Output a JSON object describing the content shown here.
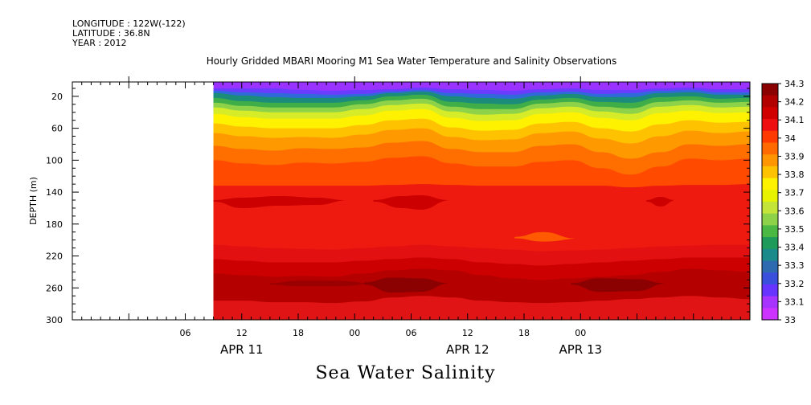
{
  "meta": {
    "longitude": "LONGITUDE : 122W(-122)",
    "latitude": "LATITUDE : 36.8N",
    "year": "YEAR : 2012"
  },
  "chart_data": {
    "type": "heatmap",
    "title": "Hourly Gridded MBARI Mooring M1 Sea Water Temperature and Salinity Observations",
    "bottom_title": "Sea Water Salinity",
    "ylabel": "DEPTH (m)",
    "y_reversed": true,
    "ylim": [
      300,
      2
    ],
    "y_ticks": [
      20,
      60,
      100,
      140,
      180,
      220,
      260,
      300
    ],
    "x_unit": "hours from APR 11 00:00",
    "xlim": [
      -6,
      66
    ],
    "x_ticks": [
      {
        "x": 6,
        "label": "06"
      },
      {
        "x": 12,
        "label": "12"
      },
      {
        "x": 18,
        "label": "18"
      },
      {
        "x": 24,
        "label": "00"
      },
      {
        "x": 30,
        "label": "06"
      },
      {
        "x": 36,
        "label": "12"
      },
      {
        "x": 42,
        "label": "18"
      },
      {
        "x": 48,
        "label": "00"
      }
    ],
    "date_labels": [
      {
        "x": 12,
        "label": "APR 11"
      },
      {
        "x": 36,
        "label": "APR 12"
      },
      {
        "x": 48,
        "label": "APR 13"
      }
    ],
    "data_start": 9,
    "colorbar": {
      "levels": [
        "34.3",
        "34.2",
        "34.1",
        "34",
        "33.9",
        "33.8",
        "33.7",
        "33.6",
        "33.5",
        "33.4",
        "33.3",
        "33.2",
        "33.1",
        "33"
      ],
      "colors": [
        "#8b0000",
        "#b20000",
        "#d00000",
        "#ee1010",
        "#ff3a00",
        "#ff6a00",
        "#ff9500",
        "#ffc200",
        "#fff200",
        "#e6f200",
        "#c4e43a",
        "#8ed24a",
        "#4ab843",
        "#1e9a5a",
        "#1a8a8a",
        "#2e6ab0",
        "#3a50dc",
        "#6633ff",
        "#a733ff",
        "#cc33ff"
      ]
    },
    "bands": [
      {
        "color": "#9a33ff",
        "top": [
          2,
          2,
          2,
          2,
          2,
          2,
          2,
          2,
          2,
          2,
          2,
          2,
          2,
          2,
          2,
          2,
          2,
          2,
          2
        ]
      },
      {
        "color": "#6a3cff",
        "top": [
          10,
          10,
          10,
          12,
          13,
          12,
          11,
          9,
          11,
          12,
          13,
          11,
          10,
          12,
          12,
          10,
          9,
          11,
          11
        ]
      },
      {
        "color": "#2f6ad8",
        "top": [
          13,
          15,
          16,
          17,
          18,
          17,
          14,
          12,
          16,
          17,
          18,
          15,
          14,
          17,
          16,
          13,
          12,
          15,
          15
        ]
      },
      {
        "color": "#1c8c7a",
        "top": [
          16,
          19,
          21,
          22,
          22,
          20,
          16,
          14,
          20,
          22,
          23,
          19,
          17,
          21,
          21,
          16,
          15,
          18,
          18
        ]
      },
      {
        "color": "#3fae48",
        "top": [
          22,
          26,
          28,
          28,
          28,
          25,
          20,
          18,
          27,
          29,
          30,
          24,
          22,
          27,
          28,
          21,
          20,
          23,
          22
        ]
      },
      {
        "color": "#8ed24a",
        "top": [
          28,
          32,
          34,
          34,
          34,
          30,
          25,
          23,
          33,
          36,
          36,
          29,
          27,
          33,
          35,
          27,
          25,
          28,
          27
        ]
      },
      {
        "color": "#d6ec28",
        "top": [
          34,
          38,
          40,
          40,
          40,
          36,
          31,
          29,
          39,
          43,
          42,
          35,
          33,
          39,
          42,
          33,
          31,
          34,
          33
        ]
      },
      {
        "color": "#fff200",
        "top": [
          42,
          46,
          48,
          48,
          48,
          44,
          38,
          36,
          47,
          51,
          50,
          42,
          40,
          47,
          50,
          41,
          38,
          41,
          40
        ]
      },
      {
        "color": "#ffc200",
        "top": [
          54,
          58,
          60,
          60,
          60,
          56,
          50,
          48,
          59,
          63,
          62,
          54,
          52,
          60,
          64,
          55,
          50,
          53,
          52
        ]
      },
      {
        "color": "#ff9900",
        "top": [
          66,
          70,
          72,
          71,
          72,
          68,
          62,
          60,
          71,
          75,
          74,
          66,
          64,
          73,
          79,
          70,
          63,
          66,
          64
        ]
      },
      {
        "color": "#ff6f00",
        "top": [
          82,
          86,
          88,
          85,
          86,
          84,
          78,
          76,
          86,
          90,
          90,
          82,
          80,
          90,
          98,
          90,
          80,
          82,
          80
        ]
      },
      {
        "color": "#ff4a00",
        "top": [
          100,
          104,
          106,
          103,
          104,
          102,
          97,
          95,
          104,
          108,
          108,
          102,
          100,
          110,
          118,
          108,
          98,
          100,
          98
        ]
      },
      {
        "color": "#ee1a10",
        "top": [
          132,
          132,
          132,
          132,
          132,
          132,
          131,
          130,
          131,
          132,
          132,
          132,
          132,
          132,
          134,
          132,
          131,
          131,
          130
        ]
      },
      {
        "color": "#e21010",
        "top": [
          206,
          208,
          210,
          211,
          212,
          210,
          208,
          206,
          208,
          210,
          212,
          214,
          213,
          212,
          210,
          208,
          207,
          206,
          206
        ]
      },
      {
        "color": "#cc0000",
        "top": [
          224,
          226,
          228,
          228,
          228,
          226,
          224,
          222,
          224,
          228,
          230,
          232,
          230,
          228,
          226,
          224,
          222,
          222,
          222
        ]
      },
      {
        "color": "#b50000",
        "top": [
          242,
          244,
          246,
          245,
          246,
          242,
          238,
          236,
          238,
          244,
          248,
          250,
          248,
          246,
          244,
          240,
          236,
          238,
          240
        ]
      },
      {
        "color": "#e01414",
        "top": [
          276,
          276,
          278,
          278,
          279,
          277,
          272,
          270,
          272,
          276,
          278,
          279,
          278,
          276,
          274,
          272,
          270,
          272,
          274
        ]
      }
    ],
    "patches": [
      {
        "color": "#9a0000",
        "x": [
          15,
          18,
          22,
          26
        ],
        "top": [
          254,
          251,
          251,
          254
        ],
        "bottom": [
          256,
          258,
          258,
          256
        ]
      },
      {
        "color": "#8b0000",
        "x": [
          25,
          28,
          31,
          34
        ],
        "top": [
          253,
          247,
          248,
          254
        ],
        "bottom": [
          256,
          266,
          265,
          256
        ]
      },
      {
        "color": "#8b0000",
        "x": [
          47,
          50,
          54,
          57
        ],
        "top": [
          254,
          248,
          249,
          254
        ],
        "bottom": [
          256,
          265,
          264,
          256
        ]
      },
      {
        "color": "#cc0000",
        "x": [
          9,
          12,
          16,
          20,
          23
        ],
        "top": [
          150,
          147,
          145,
          147,
          150
        ],
        "bottom": [
          152,
          160,
          157,
          156,
          152
        ]
      },
      {
        "color": "#cc0000",
        "x": [
          26,
          29,
          31,
          34
        ],
        "top": [
          150,
          145,
          144,
          150
        ],
        "bottom": [
          152,
          160,
          162,
          152
        ]
      },
      {
        "color": "#cc0000",
        "x": [
          55,
          56.5,
          58
        ],
        "top": [
          150,
          146,
          150
        ],
        "bottom": [
          152,
          158,
          152
        ]
      },
      {
        "color": "#ff5a00",
        "x": [
          41,
          44,
          47.5
        ],
        "top": [
          196,
          190,
          198
        ],
        "bottom": [
          198,
          202,
          200
        ]
      }
    ]
  }
}
